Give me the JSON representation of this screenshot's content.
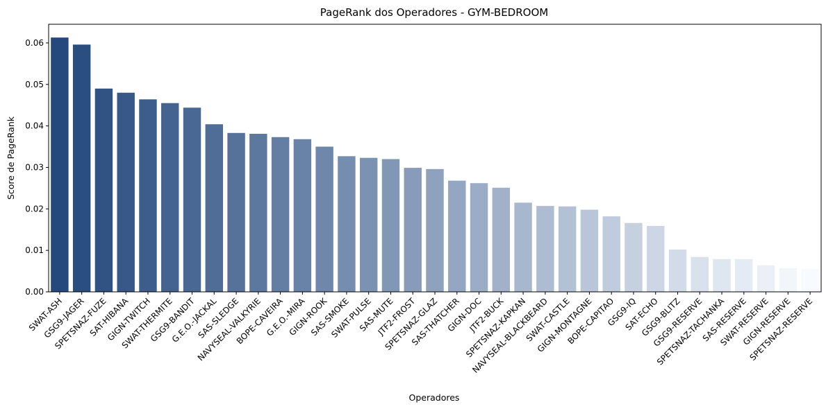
{
  "chart_data": {
    "type": "bar",
    "title": "PageRank dos Operadores - GYM-BEDROOM",
    "xlabel": "Operadores",
    "ylabel": "Score de PageRank",
    "ylim": [
      0,
      0.0645
    ],
    "yticks": [
      "0.00",
      "0.01",
      "0.02",
      "0.03",
      "0.04",
      "0.05",
      "0.06"
    ],
    "grid": false,
    "legend": "none",
    "palette": "Blues_r",
    "categories": [
      "SWAT-ASH",
      "GSG9-JAGER",
      "SPETSNAZ-FUZE",
      "SAT-HIBANA",
      "GIGN-TWITCH",
      "SWAT-THERMITE",
      "GSG9-BANDIT",
      "G.E.O.-JACKAL",
      "SAS-SLEDGE",
      "NAVYSEAL-VALKYRIE",
      "BOPE-CAVEIRA",
      "G.E.O.-MIRA",
      "GIGN-ROOK",
      "SAS-SMOKE",
      "SWAT-PULSE",
      "SAS-MUTE",
      "JTF2-FROST",
      "SPETSNAZ-GLAZ",
      "SAS-THATCHER",
      "GIGN-DOC",
      "JTF2-BUCK",
      "SPETSNAZ-KAPKAN",
      "NAVYSEAL-BLACKBEARD",
      "SWAT-CASTLE",
      "GIGN-MONTAGNE",
      "BOPE-CAPITAO",
      "GSG9-IQ",
      "SAT-ECHO",
      "GSG9-BLITZ",
      "GSG9-RESERVE",
      "SPETSNAZ-TACHANKA",
      "SAS-RESERVE",
      "SWAT-RESERVE",
      "GIGN-RESERVE",
      "SPETSNAZ-RESERVE"
    ],
    "values": [
      0.0613,
      0.0596,
      0.049,
      0.048,
      0.0464,
      0.0455,
      0.0444,
      0.0404,
      0.0383,
      0.0381,
      0.0373,
      0.0368,
      0.035,
      0.0327,
      0.0323,
      0.032,
      0.0299,
      0.0296,
      0.0268,
      0.0262,
      0.0251,
      0.0215,
      0.0207,
      0.0206,
      0.0198,
      0.0182,
      0.0166,
      0.0159,
      0.0102,
      0.0084,
      0.0079,
      0.0079,
      0.0064,
      0.0057,
      0.0055
    ]
  }
}
